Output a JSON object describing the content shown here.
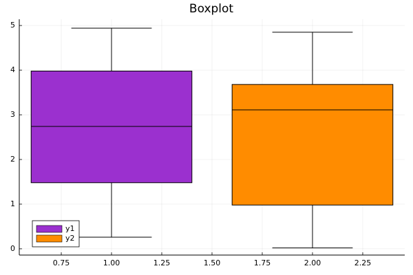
{
  "chart_data": {
    "type": "box",
    "title": "Boxplot",
    "series": [
      {
        "name": "y1",
        "color": "#9b30cf",
        "x": 1,
        "min": 0.26,
        "q1": 1.48,
        "median": 2.74,
        "q3": 3.98,
        "max": 4.94
      },
      {
        "name": "y2",
        "color": "#ff8c00",
        "x": 2,
        "min": 0.02,
        "q1": 0.98,
        "median": 3.11,
        "q3": 3.68,
        "max": 4.85
      }
    ],
    "xlim": [
      0.541,
      2.459
    ],
    "xticks": [
      {
        "value": 0.75,
        "label": "0.75"
      },
      {
        "value": 1,
        "label": "1.00"
      },
      {
        "value": 1.25,
        "label": "1.25"
      },
      {
        "value": 1.5,
        "label": "1.50"
      },
      {
        "value": 1.75,
        "label": "1.75"
      },
      {
        "value": 2,
        "label": "2.00"
      },
      {
        "value": 2.25,
        "label": "2.25"
      }
    ],
    "ylim": [
      -0.14,
      5.14
    ],
    "yticks": [
      0,
      1,
      2,
      3,
      4,
      5
    ],
    "grid": true,
    "legend": "bottom-left"
  }
}
